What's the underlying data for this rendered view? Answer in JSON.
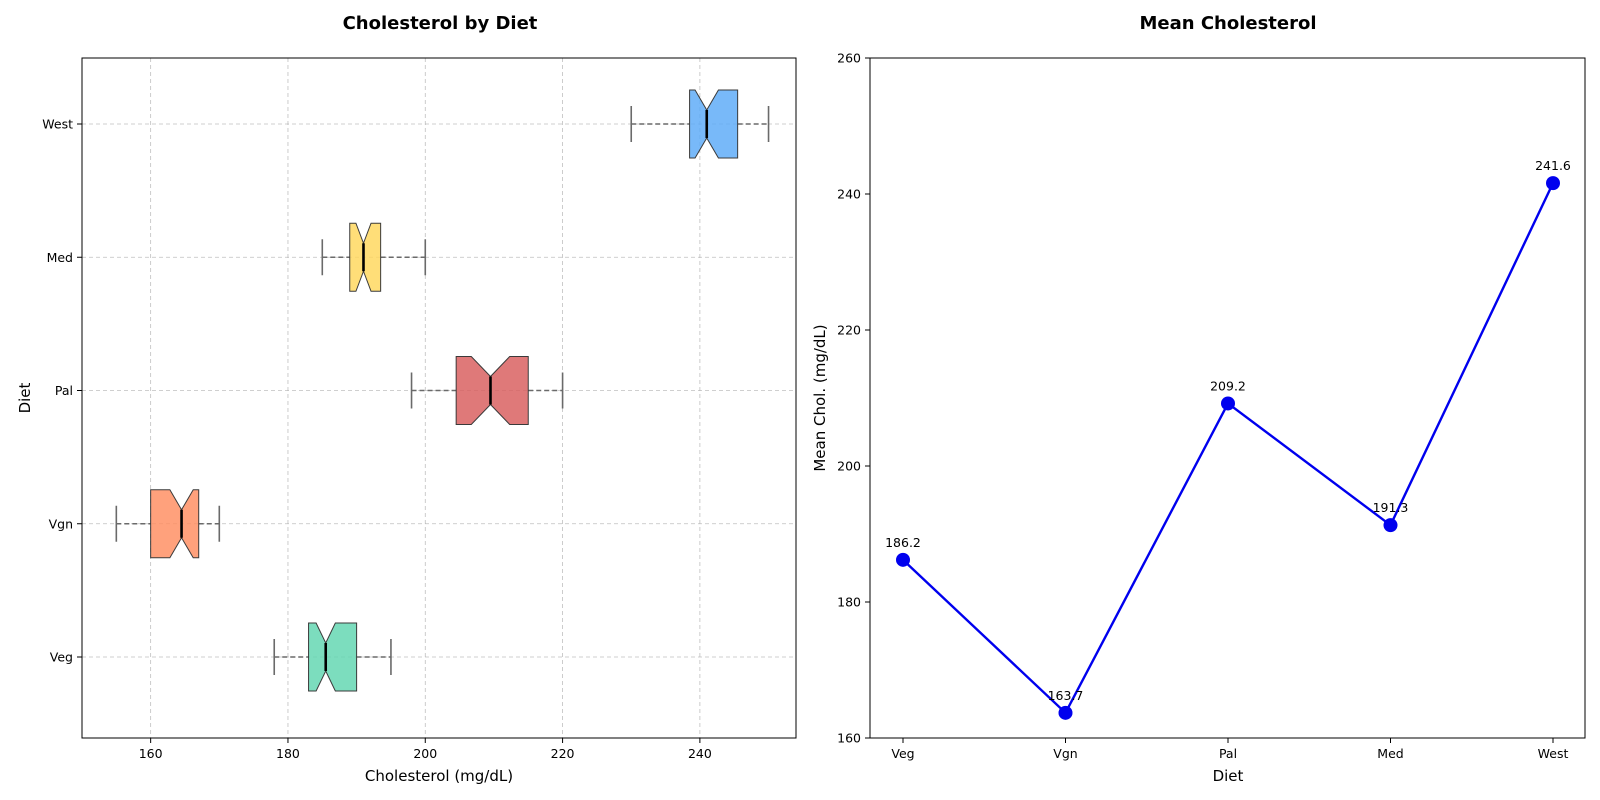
{
  "chart_data": [
    {
      "type": "box",
      "title": "Cholesterol by Diet",
      "xlabel": "Cholesterol (mg/dL)",
      "ylabel": "Diet",
      "xlim": [
        150,
        254
      ],
      "xticks": [
        160,
        180,
        200,
        220,
        240
      ],
      "categories": [
        "Veg",
        "Vgn",
        "Pal",
        "Med",
        "West"
      ],
      "grid": true,
      "series": [
        {
          "category": "Veg",
          "min": 178,
          "q1": 183,
          "median": 185.5,
          "q3": 190,
          "max": 195,
          "notch_low": 184.1,
          "notch_high": 186.9,
          "color": "#5fd6b0"
        },
        {
          "category": "Vgn",
          "min": 155,
          "q1": 160,
          "median": 164.5,
          "q3": 167,
          "max": 170,
          "notch_low": 162.8,
          "notch_high": 166.2,
          "color": "#ff8c5f"
        },
        {
          "category": "Pal",
          "min": 198,
          "q1": 204.5,
          "median": 209.5,
          "q3": 215,
          "max": 220,
          "notch_low": 206.7,
          "notch_high": 212.3,
          "color": "#d85c5c"
        },
        {
          "category": "Med",
          "min": 185,
          "q1": 189,
          "median": 191,
          "q3": 193.5,
          "max": 200,
          "notch_low": 189.9,
          "notch_high": 192.1,
          "color": "#ffd75a"
        },
        {
          "category": "West",
          "min": 230,
          "q1": 238.5,
          "median": 241,
          "q3": 245.5,
          "max": 250,
          "notch_low": 239.3,
          "notch_high": 242.7,
          "color": "#5aaaf8"
        }
      ]
    },
    {
      "type": "line",
      "title": "Mean Cholesterol",
      "xlabel": "Diet",
      "ylabel": "Mean Chol. (mg/dL)",
      "ylim": [
        160,
        260
      ],
      "yticks": [
        160,
        180,
        200,
        220,
        240,
        260
      ],
      "categories": [
        "Veg",
        "Vgn",
        "Pal",
        "Med",
        "West"
      ],
      "values": [
        186.2,
        163.7,
        209.2,
        191.3,
        241.6
      ],
      "data_labels": [
        "186.2",
        "163.7",
        "209.2",
        "191.3",
        "241.6"
      ],
      "color": "#0000ee",
      "grid": false
    }
  ]
}
